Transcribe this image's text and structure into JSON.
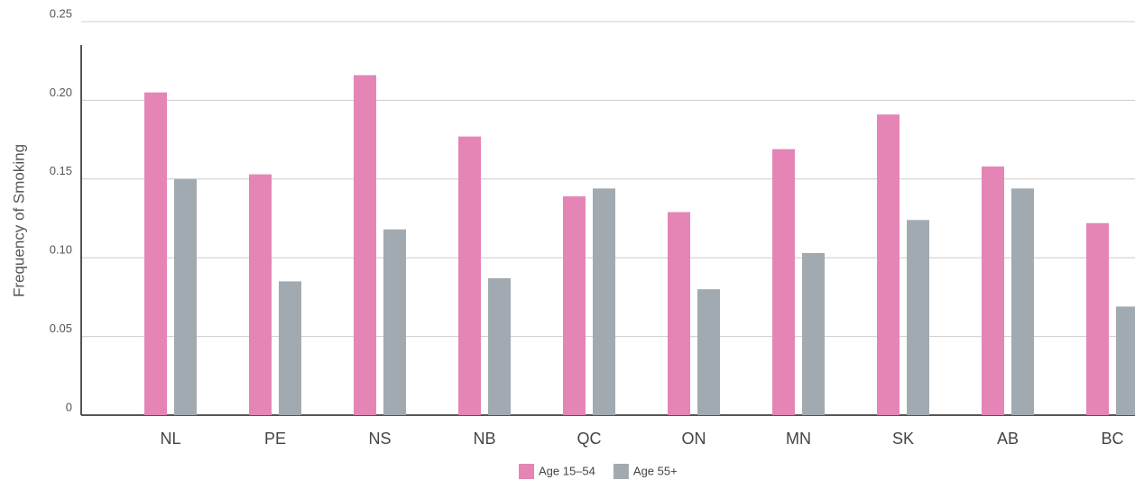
{
  "chart_data": {
    "type": "bar",
    "y_label": "Frequency of Smoking",
    "categories": [
      "NL",
      "PE",
      "NS",
      "NB",
      "QC",
      "ON",
      "MN",
      "SK",
      "AB",
      "BC"
    ],
    "series": [
      {
        "name": "Age 15–54",
        "color": "#e585b5",
        "values": [
          0.205,
          0.153,
          0.216,
          0.177,
          0.139,
          0.129,
          0.169,
          0.191,
          0.158,
          0.122
        ]
      },
      {
        "name": "Age 55+",
        "color": "#a2aab1",
        "values": [
          0.15,
          0.085,
          0.118,
          0.087,
          0.144,
          0.08,
          0.103,
          0.124,
          0.144,
          0.069
        ]
      }
    ],
    "ylim": [
      0,
      0.25
    ],
    "yticks": [
      0,
      0.05,
      {
        "value": 0.1,
        "label": "0.10"
      },
      0.15,
      {
        "value": 0.2,
        "label": "0.20"
      },
      0.25
    ],
    "grid": true,
    "legend": "bottom"
  }
}
